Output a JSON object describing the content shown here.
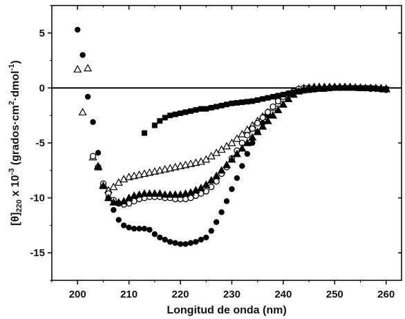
{
  "chart_data": {
    "type": "scatter",
    "title": "",
    "xlabel": "Longitud de onda (nm)",
    "ylabel": {
      "prefix": "[θ]",
      "subscript": "220",
      "mid": " x 10",
      "exponent": "-3",
      "units": " (grados·cm",
      "units_exp1": "2",
      "units_mid": "·dmol",
      "units_exp2": "-1",
      "close": ")"
    },
    "xlim": [
      195,
      263
    ],
    "ylim": [
      -17.5,
      7.5
    ],
    "xticks": [
      200,
      210,
      220,
      230,
      240,
      250,
      260
    ],
    "yticks": [
      5,
      0,
      -5,
      -10,
      -15
    ],
    "zero_line": true,
    "legend": "none",
    "series": [
      {
        "marker": "filled-circle",
        "x": [
          200,
          201,
          202,
          203,
          204,
          205,
          206,
          207,
          208,
          209,
          210,
          211,
          212,
          213,
          214,
          215,
          216,
          217,
          218,
          219,
          220,
          221,
          222,
          223,
          224,
          225,
          226,
          227,
          228,
          229,
          230,
          231,
          232,
          233,
          234,
          235,
          236,
          237,
          238,
          239,
          240,
          241,
          242,
          243,
          244,
          245,
          246,
          247,
          248,
          249,
          250,
          251,
          252,
          253,
          254,
          255,
          256,
          257,
          258,
          259,
          260
        ],
        "y": [
          5.3,
          3.0,
          -0.8,
          -3.1,
          -5.9,
          -8.8,
          -10.0,
          -11.1,
          -12.0,
          -12.5,
          -12.7,
          -12.8,
          -12.8,
          -12.8,
          -12.9,
          -13.3,
          -13.6,
          -13.8,
          -14.0,
          -14.1,
          -14.2,
          -14.2,
          -14.1,
          -14.0,
          -13.8,
          -13.6,
          -13.0,
          -12.2,
          -11.3,
          -10.3,
          -9.2,
          -8.2,
          -7.1,
          -6.0,
          -5.0,
          -4.0,
          -3.2,
          -2.5,
          -1.8,
          -1.3,
          -0.8,
          -0.5,
          -0.3,
          -0.2,
          -0.1,
          -0.05,
          0,
          0,
          0,
          0,
          0,
          0,
          0,
          0,
          0,
          0,
          -0.05,
          -0.1,
          -0.1,
          -0.15,
          -0.2
        ]
      },
      {
        "marker": "open-triangle",
        "x": [
          200,
          201,
          202,
          203,
          204,
          205,
          206,
          207,
          208,
          209,
          210,
          211,
          212,
          213,
          214,
          215,
          216,
          217,
          218,
          219,
          220,
          221,
          222,
          223,
          224,
          225,
          226,
          227,
          228,
          229,
          230,
          231,
          232,
          233,
          234,
          235,
          236,
          237,
          238,
          239,
          240,
          241,
          242,
          243,
          244,
          245,
          246,
          247,
          248,
          249,
          250,
          251,
          252,
          253,
          254,
          255,
          256,
          257,
          258,
          259,
          260
        ],
        "y": [
          1.7,
          -2.2,
          1.8,
          -6.3,
          -7.1,
          -8.8,
          -9.3,
          -9.0,
          -8.6,
          -8.3,
          -8.1,
          -8.0,
          -7.9,
          -7.8,
          -7.7,
          -7.6,
          -7.5,
          -7.4,
          -7.3,
          -7.2,
          -7.1,
          -7.0,
          -6.9,
          -6.8,
          -6.7,
          -6.5,
          -6.2,
          -5.9,
          -5.6,
          -5.3,
          -5.0,
          -4.6,
          -4.2,
          -3.8,
          -3.4,
          -3.0,
          -2.6,
          -2.2,
          -1.8,
          -1.4,
          -1.0,
          -0.6,
          -0.3,
          -0.1,
          0,
          0.05,
          0.1,
          0.1,
          0.1,
          0.1,
          0.1,
          0.1,
          0.1,
          0.1,
          0.05,
          0,
          0,
          0,
          0,
          -0.05,
          -0.1
        ]
      },
      {
        "marker": "open-circle",
        "x": [
          203,
          204,
          205,
          206,
          207,
          208,
          209,
          210,
          211,
          212,
          213,
          214,
          215,
          216,
          217,
          218,
          219,
          220,
          221,
          222,
          223,
          224,
          225,
          226,
          227,
          228,
          229,
          230,
          231,
          232,
          233,
          234,
          235,
          236,
          237,
          238,
          239,
          240,
          241,
          242,
          243,
          244,
          245
        ],
        "y": [
          -6.2,
          -7.2,
          -8.7,
          -9.6,
          -10.2,
          -10.5,
          -10.6,
          -10.5,
          -10.3,
          -10.1,
          -10.0,
          -9.9,
          -9.9,
          -9.9,
          -10.0,
          -10.0,
          -10.1,
          -10.1,
          -10.1,
          -10.0,
          -9.8,
          -9.6,
          -9.4,
          -9.0,
          -8.5,
          -7.8,
          -7.2,
          -6.4,
          -5.7,
          -5.0,
          -4.3,
          -3.7,
          -3.2,
          -2.7,
          -2.2,
          -1.7,
          -1.2,
          -0.8,
          -0.5,
          -0.3,
          -0.1,
          0,
          0
        ]
      },
      {
        "marker": "filled-triangle",
        "x": [
          204,
          205,
          206,
          207,
          208,
          209,
          210,
          211,
          212,
          213,
          214,
          215,
          216,
          217,
          218,
          219,
          220,
          221,
          222,
          223,
          224,
          225,
          226,
          227,
          228,
          229,
          230,
          231,
          232,
          233,
          234,
          235,
          236,
          237,
          238,
          239,
          240,
          241,
          242,
          243,
          244,
          245,
          246,
          247,
          248,
          249,
          250,
          251,
          252,
          253,
          254,
          255,
          256,
          257,
          258,
          259,
          260
        ],
        "y": [
          -7.2,
          -8.9,
          -10.0,
          -10.4,
          -10.4,
          -10.3,
          -10.0,
          -9.8,
          -9.7,
          -9.6,
          -9.6,
          -9.6,
          -9.6,
          -9.7,
          -9.7,
          -9.7,
          -9.7,
          -9.6,
          -9.5,
          -9.3,
          -9.1,
          -8.8,
          -8.4,
          -8.0,
          -7.5,
          -7.0,
          -6.5,
          -6.0,
          -5.5,
          -5.0,
          -4.5,
          -4.0,
          -3.5,
          -3.0,
          -2.5,
          -2.0,
          -1.5,
          -1.0,
          -0.6,
          -0.3,
          -0.1,
          0,
          0.1,
          0.1,
          0.1,
          0.1,
          0.1,
          0.1,
          0.1,
          0.1,
          0.05,
          0.05,
          0,
          0,
          0,
          0,
          -0.05
        ]
      },
      {
        "marker": "filled-square",
        "x": [
          213,
          215,
          216,
          217,
          218,
          219,
          220,
          221,
          222,
          223,
          224,
          225,
          226,
          227,
          228,
          229,
          230,
          231,
          232,
          233,
          234,
          235,
          236,
          237,
          238,
          239,
          240,
          241,
          242,
          243,
          244,
          245,
          246,
          247,
          248,
          249,
          250,
          251,
          252,
          253,
          254,
          255,
          256,
          257,
          258,
          259,
          260
        ],
        "y": [
          -4.1,
          -3.4,
          -3.0,
          -2.7,
          -2.5,
          -2.4,
          -2.3,
          -2.2,
          -2.1,
          -2.0,
          -1.9,
          -1.9,
          -1.8,
          -1.7,
          -1.6,
          -1.5,
          -1.4,
          -1.35,
          -1.3,
          -1.25,
          -1.2,
          -1.1,
          -1.0,
          -0.9,
          -0.8,
          -0.7,
          -0.6,
          -0.5,
          -0.4,
          -0.3,
          -0.25,
          -0.2,
          -0.15,
          -0.1,
          -0.1,
          -0.05,
          0,
          0,
          0,
          0,
          0,
          0,
          0,
          0,
          -0.05,
          -0.1,
          -0.1
        ]
      }
    ]
  }
}
